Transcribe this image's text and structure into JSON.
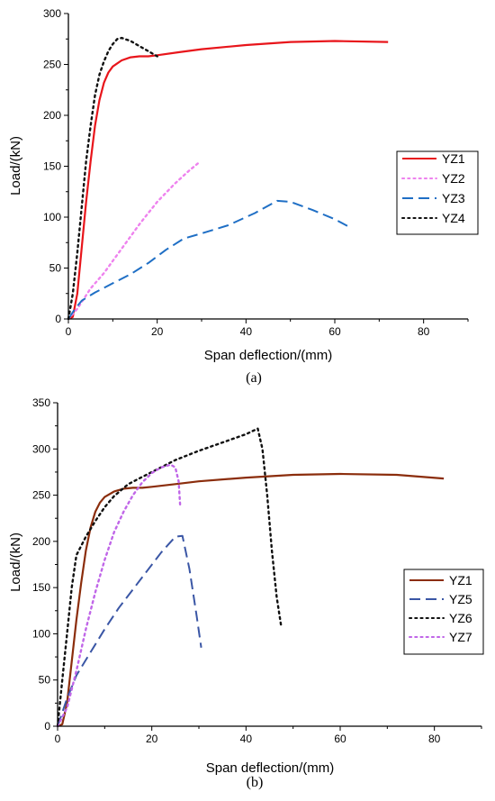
{
  "chart_data": [
    {
      "panel_label": "(a)",
      "type": "line",
      "xlabel": "Span deflection/(mm)",
      "ylabel": "Load/(kN)",
      "xlim": [
        0,
        90
      ],
      "ylim": [
        0,
        300
      ],
      "xticks": [
        0,
        20,
        40,
        60,
        80
      ],
      "yticks": [
        0,
        50,
        100,
        150,
        200,
        250,
        300
      ],
      "grid": false,
      "legend_position": "right",
      "series": [
        {
          "name": "YZ1",
          "color": "#e8151b",
          "style": "solid",
          "x": [
            0,
            1,
            2,
            3,
            4,
            5,
            6,
            7,
            8,
            9,
            10,
            12,
            14,
            16,
            18,
            20,
            25,
            30,
            40,
            50,
            60,
            72
          ],
          "y": [
            0,
            2,
            25,
            70,
            115,
            155,
            190,
            215,
            232,
            242,
            248,
            254,
            257,
            258,
            258,
            259,
            262,
            265,
            269,
            272,
            273,
            272
          ]
        },
        {
          "name": "YZ2",
          "color": "#ee82ee",
          "style": "dotted",
          "x": [
            0,
            2,
            5,
            8,
            10,
            13,
            16,
            20,
            24,
            27,
            29.5
          ],
          "y": [
            0,
            10,
            30,
            45,
            57,
            75,
            93,
            115,
            133,
            145,
            154
          ]
        },
        {
          "name": "YZ3",
          "color": "#1f6fc5",
          "style": "dashed",
          "x": [
            0,
            1.5,
            3,
            6,
            10,
            14,
            18,
            22,
            26,
            30,
            36,
            42,
            47,
            50,
            55,
            60,
            63
          ],
          "y": [
            0,
            10,
            18,
            26,
            35,
            44,
            55,
            68,
            79,
            84,
            92,
            104,
            116,
            115,
            107,
            98,
            91
          ]
        },
        {
          "name": "YZ4",
          "color": "#111111",
          "style": "dotted",
          "x": [
            0,
            1,
            2,
            3,
            4,
            5,
            6,
            7,
            8,
            9,
            10,
            11,
            12,
            14,
            16,
            18,
            20
          ],
          "y": [
            0,
            25,
            65,
            110,
            155,
            190,
            220,
            240,
            253,
            263,
            270,
            275,
            276,
            273,
            268,
            263,
            258
          ]
        }
      ]
    },
    {
      "panel_label": "(b)",
      "type": "line",
      "xlabel": "Span deflection/(mm)",
      "ylabel": "Load/(kN)",
      "xlim": [
        0,
        90
      ],
      "ylim": [
        0,
        350
      ],
      "xticks": [
        0,
        20,
        40,
        60,
        80
      ],
      "yticks": [
        0,
        50,
        100,
        150,
        200,
        250,
        300,
        350
      ],
      "grid": false,
      "legend_position": "right",
      "series": [
        {
          "name": "YZ1",
          "color": "#8b2d0c",
          "style": "solid",
          "x": [
            0,
            1,
            2,
            3,
            4,
            5,
            6,
            7,
            8,
            9,
            10,
            12,
            14,
            16,
            18,
            20,
            25,
            30,
            40,
            50,
            60,
            72,
            82
          ],
          "y": [
            0,
            2,
            25,
            70,
            115,
            155,
            190,
            215,
            232,
            242,
            248,
            254,
            257,
            258,
            258,
            259,
            262,
            265,
            269,
            272,
            273,
            272,
            268
          ]
        },
        {
          "name": "YZ5",
          "color": "#3a56a5",
          "style": "dashed",
          "x": [
            0,
            2,
            4,
            7,
            10,
            13,
            16,
            19,
            22,
            25,
            26.5,
            28,
            29.5,
            30.5
          ],
          "y": [
            0,
            30,
            55,
            80,
            105,
            128,
            148,
            168,
            188,
            205,
            206,
            170,
            120,
            85
          ]
        },
        {
          "name": "YZ6",
          "color": "#111111",
          "style": "dotted",
          "x": [
            0,
            1,
            2,
            3,
            4,
            6,
            8,
            10,
            12,
            15,
            20,
            25,
            30,
            35,
            40,
            42.5,
            43.5,
            44.5,
            45.5,
            46.5,
            47.5
          ],
          "y": [
            0,
            50,
            100,
            150,
            185,
            205,
            222,
            237,
            249,
            262,
            275,
            288,
            298,
            307,
            316,
            322,
            300,
            250,
            190,
            140,
            107
          ]
        },
        {
          "name": "YZ7",
          "color": "#c066e8",
          "style": "dotted",
          "x": [
            0,
            2,
            4,
            6,
            8,
            10,
            12,
            14,
            16,
            18,
            20,
            22,
            24,
            25,
            25.7,
            26
          ],
          "y": [
            0,
            20,
            60,
            105,
            145,
            180,
            210,
            232,
            250,
            264,
            274,
            280,
            283,
            280,
            265,
            240
          ]
        }
      ]
    }
  ]
}
